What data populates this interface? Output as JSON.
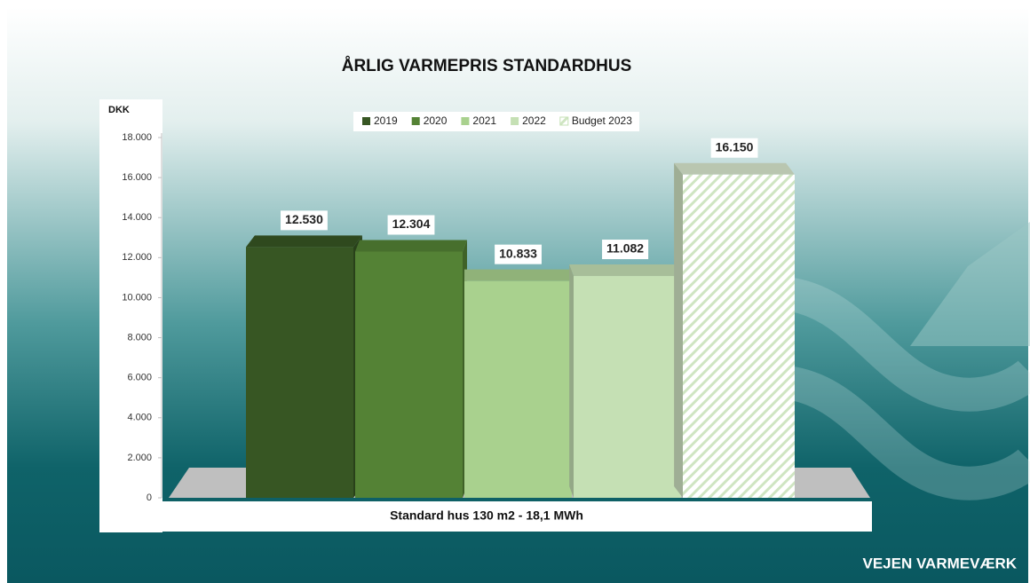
{
  "chart_data": {
    "type": "bar3d",
    "title": "ÅRLIG VARMEPRIS STANDARDHUS",
    "y_axis_label": "DKK",
    "categories": [
      "Standard hus 130 m2 - 18,1 MWh"
    ],
    "series": [
      {
        "name": "2019",
        "color": "#375623",
        "values": [
          12530
        ],
        "value_labels": [
          "12.530"
        ]
      },
      {
        "name": "2020",
        "color": "#548235",
        "values": [
          12304
        ],
        "value_labels": [
          "12.304"
        ]
      },
      {
        "name": "2021",
        "color": "#a9d18e",
        "values": [
          10833
        ],
        "value_labels": [
          "10.833"
        ]
      },
      {
        "name": "2022",
        "color": "#c5e0b4",
        "values": [
          11082
        ],
        "value_labels": [
          "11.082"
        ]
      },
      {
        "name": "Budget 2023",
        "color": "#e2f0d9",
        "hatch": true,
        "values": [
          16150
        ],
        "value_labels": [
          "16.150"
        ]
      }
    ],
    "ylim": [
      0,
      18000
    ],
    "yticks": [
      0,
      {
        "value": 2000,
        "label": "2.000"
      },
      {
        "value": 4000,
        "label": "4.000"
      },
      {
        "value": 6000,
        "label": "6.000"
      },
      {
        "value": 8000,
        "label": "8.000"
      },
      {
        "value": 10000,
        "label": "10.000"
      },
      {
        "value": 12000,
        "label": "12.000"
      },
      {
        "value": 14000,
        "label": "14.000"
      },
      {
        "value": 16000,
        "label": "16.000"
      },
      {
        "value": 18000,
        "label": "18.000"
      }
    ],
    "legend": "top"
  },
  "logo": "VEJEN VARMEVÆRK"
}
